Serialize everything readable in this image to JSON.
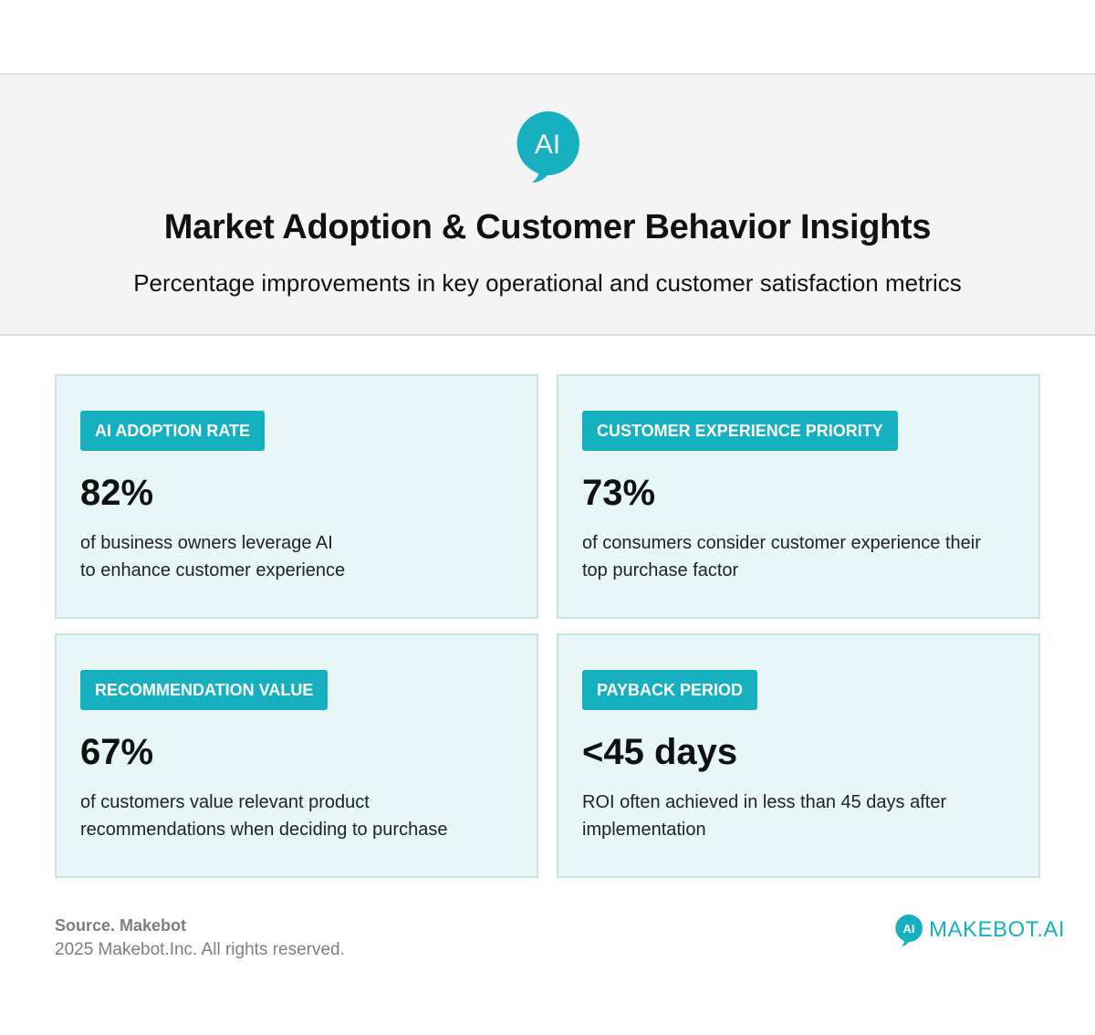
{
  "header": {
    "logo_icon": "ai-chat-bubble-icon",
    "logo_text": "AI",
    "title": "Market Adoption & Customer Behavior Insights",
    "subtitle": "Percentage improvements in key operational and customer satisfaction metrics"
  },
  "cards": [
    {
      "badge": "AI ADOPTION RATE",
      "stat": "82%",
      "desc_lines": [
        "of business owners leverage AI",
        "to enhance customer experience"
      ]
    },
    {
      "badge": "CUSTOMER EXPERIENCE PRIORITY",
      "stat": "73%",
      "desc_lines": [
        "of consumers consider customer experience their",
        "top purchase factor"
      ]
    },
    {
      "badge": "RECOMMENDATION VALUE",
      "stat": "67%",
      "desc_lines": [
        "of customers value relevant product",
        "recommendations when deciding to purchase"
      ]
    },
    {
      "badge": "PAYBACK PERIOD",
      "stat": "<45 days",
      "desc_lines": [
        "ROI often achieved in less than 45 days after",
        "implementation"
      ]
    }
  ],
  "footer": {
    "source": "Source. Makebot",
    "copyright": "2025 Makebot.Inc. All rights reserved.",
    "brand_icon": "ai-chat-bubble-icon",
    "brand_icon_text": "AI",
    "brand_name": "MAKEBOT.AI"
  },
  "colors": {
    "accent": "#17b0c0",
    "card_background": "#e7f6f6",
    "header_background": "#f4f4f4"
  }
}
